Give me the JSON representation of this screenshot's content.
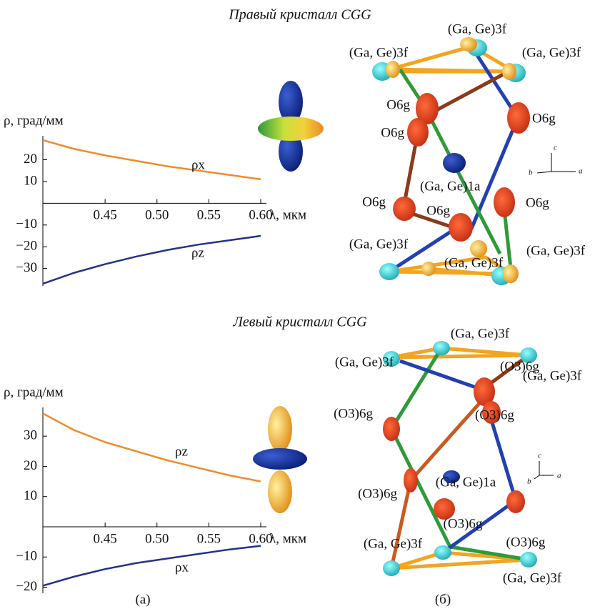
{
  "chart_data": [
    {
      "type": "line",
      "y_label": "ρ, град/мм",
      "x_label": "λ, мкм",
      "x": [
        0.39,
        0.42,
        0.45,
        0.48,
        0.51,
        0.54,
        0.57,
        0.6
      ],
      "series": [
        {
          "name": "ρx",
          "color": "#f08a2a",
          "values": [
            29,
            25,
            22,
            19.5,
            17,
            15,
            13,
            11
          ]
        },
        {
          "name": "ρz",
          "color": "#25318a",
          "values": [
            -37,
            -32,
            -28,
            -24.5,
            -21.5,
            -19,
            -17,
            -15
          ]
        }
      ],
      "xlim": [
        0.39,
        0.6
      ],
      "ylim": [
        -38,
        31
      ],
      "xticks": [
        0.45,
        {
          "value": 0.5,
          "label": "0.50"
        },
        0.55,
        {
          "value": 0.6,
          "label": "0.60"
        }
      ],
      "yticks": [
        {
          "value": -30,
          "label": "−30"
        },
        {
          "value": -20,
          "label": "−20"
        },
        {
          "value": -10,
          "label": "−10"
        },
        10,
        20
      ]
    },
    {
      "type": "line",
      "y_label": "ρ, град/мм",
      "x_label": "λ, мкм",
      "x": [
        0.39,
        0.42,
        0.45,
        0.48,
        0.51,
        0.54,
        0.57,
        0.6
      ],
      "series": [
        {
          "name": "ρz",
          "color": "#f08a2a",
          "values": [
            37.5,
            32,
            28,
            25,
            22,
            19.5,
            17,
            15
          ]
        },
        {
          "name": "ρx",
          "color": "#25318a",
          "values": [
            -19.5,
            -16.5,
            -14,
            -12,
            -10.5,
            -9,
            -7.5,
            -6.3
          ]
        }
      ],
      "xlim": [
        0.39,
        0.6
      ],
      "ylim": [
        -22,
        39.5
      ],
      "xticks": [
        0.45,
        {
          "value": 0.5,
          "label": "0.50"
        },
        0.55,
        {
          "value": 0.6,
          "label": "0.60"
        }
      ],
      "yticks": [
        {
          "value": -20,
          "label": "−20"
        },
        {
          "value": -10,
          "label": "−10"
        },
        10,
        20,
        30
      ]
    }
  ],
  "figure": {
    "titles": [
      "Правый кристалл CGG",
      "Левый кристалл CGG"
    ],
    "panels": [
      "(а)",
      "(б)"
    ],
    "top_structure": [
      "(Ga, Ge)3f",
      "(Ga, Ge)3f",
      "(Ga, Ge)3f",
      "O6g",
      "O6g",
      "O6g",
      "(Ga, Ge)1a",
      "O6g",
      "O6g",
      "O6g",
      "(Ga, Ge)3f",
      "(Ga, Ge)3f",
      "(Ga, Ge)3f",
      "c",
      "b",
      "a"
    ],
    "bottom_structure": [
      "(Ga, Ge)3f",
      "(Ga, Ge)3f",
      "(Ga, Ge)3f",
      "(O3)6g",
      "(O3)6g",
      "(O3)6g",
      "(Ga, Ge)1a",
      "(O3)6g",
      "(O3)6g",
      "(O3)6g",
      "(Ga, Ge)3f",
      "(Ga, Ge)3f",
      "c",
      "b",
      "a"
    ]
  }
}
